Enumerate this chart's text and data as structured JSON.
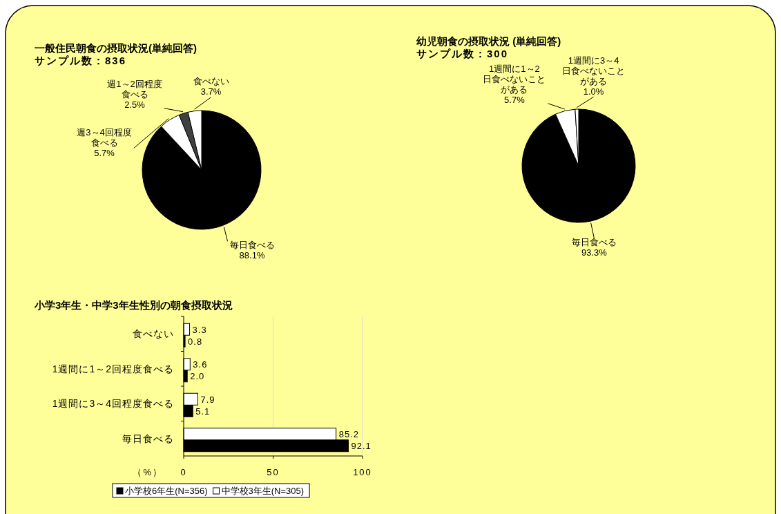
{
  "chart_data": [
    {
      "type": "pie",
      "title": "一般住民朝食の摂取状況(単純回答)",
      "subtitle": "サンプル数：836",
      "categories": [
        "毎日食べる",
        "週3～4回程度食べる",
        "週1～2回程度食べる",
        "食べない"
      ],
      "values": [
        88.1,
        5.7,
        2.5,
        3.7
      ],
      "value_labels": [
        "88.1%",
        "5.7%",
        "2.5%",
        "3.7%"
      ],
      "colors": [
        "#000000",
        "#ffffff",
        "#404040",
        "#ffffff"
      ]
    },
    {
      "type": "pie",
      "title": "幼児朝食の摂取状況 (単純回答)",
      "subtitle": "サンプル数：300",
      "categories": [
        "毎日食べる",
        "1週間に1～2日食べないことがある",
        "1週間に3～4日食べないことがある"
      ],
      "values": [
        93.3,
        5.7,
        1.0
      ],
      "value_labels": [
        "93.3%",
        "5.7%",
        "1.0%"
      ],
      "colors": [
        "#000000",
        "#ffffff",
        "#ffffff"
      ]
    },
    {
      "type": "bar",
      "orientation": "horizontal",
      "title": "小学3年生・中学3年生性別の朝食摂取状況",
      "categories": [
        "食べない",
        "1週間に1～2回程度食べる",
        "1週間に3～4回程度食べる",
        "毎日食べる"
      ],
      "series": [
        {
          "name": "小学校6年生(N=356)",
          "color": "#000000",
          "values": [
            0.8,
            2.0,
            5.1,
            92.1
          ],
          "value_labels": [
            "0.8",
            "2.0",
            "5.1",
            "92.1"
          ]
        },
        {
          "name": "中学校3年生(N=305)",
          "color": "#ffffff",
          "values": [
            3.3,
            3.6,
            7.9,
            85.2
          ],
          "value_labels": [
            "3.3",
            "3.6",
            "7.9",
            "85.2"
          ]
        }
      ],
      "xlim": [
        0,
        100
      ],
      "xticks": [
        0,
        50,
        100
      ],
      "xlabel": "（%）",
      "grid": "x",
      "legend": "bottom"
    }
  ]
}
